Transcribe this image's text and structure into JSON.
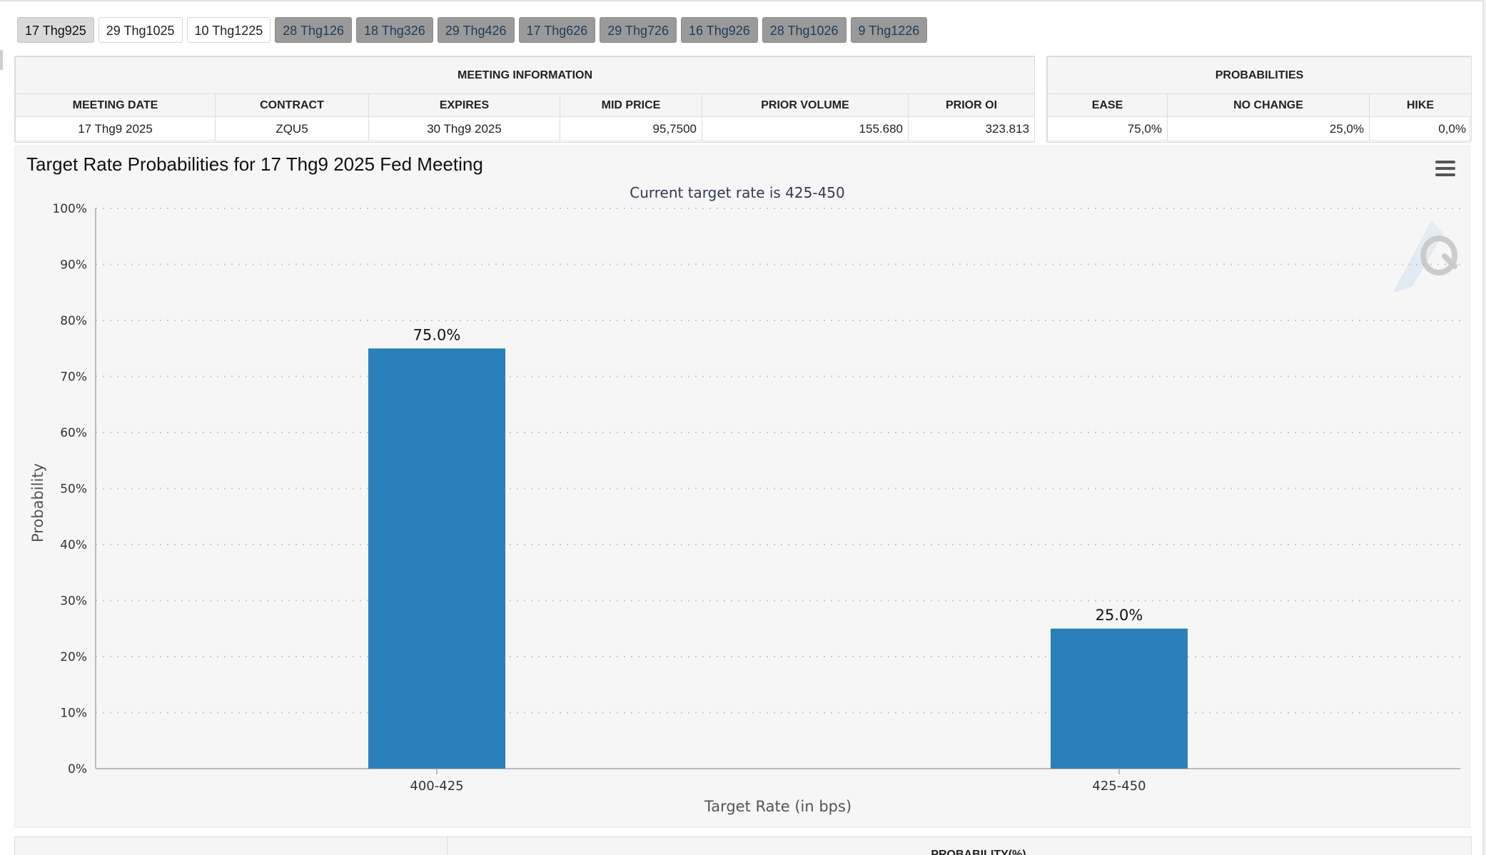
{
  "tabs": [
    {
      "label": "17 Thg925",
      "style": "active"
    },
    {
      "label": "29 Thg1025",
      "style": "light"
    },
    {
      "label": "10 Thg1225",
      "style": "light"
    },
    {
      "label": "28 Thg126",
      "style": "dark"
    },
    {
      "label": "18 Thg326",
      "style": "dark"
    },
    {
      "label": "29 Thg426",
      "style": "dark"
    },
    {
      "label": "17 Thg626",
      "style": "dark"
    },
    {
      "label": "29 Thg726",
      "style": "dark"
    },
    {
      "label": "16 Thg926",
      "style": "dark"
    },
    {
      "label": "28 Thg1026",
      "style": "dark"
    },
    {
      "label": "9 Thg1226",
      "style": "dark"
    }
  ],
  "meeting_info": {
    "heading": "MEETING INFORMATION",
    "columns": [
      "MEETING DATE",
      "CONTRACT",
      "EXPIRES",
      "MID PRICE",
      "PRIOR VOLUME",
      "PRIOR OI"
    ],
    "row": [
      "17 Thg9 2025",
      "ZQU5",
      "30 Thg9 2025",
      "95,7500",
      "155.680",
      "323.813"
    ]
  },
  "probabilities": {
    "heading": "PROBABILITIES",
    "columns": [
      "EASE",
      "NO CHANGE",
      "HIKE"
    ],
    "row": [
      "75,0%",
      "25,0%",
      "0,0%"
    ]
  },
  "chart": {
    "title": "Target Rate Probabilities for 17 Thg9 2025 Fed Meeting",
    "menu_icon": "hamburger-menu-icon",
    "watermark_icon": "quikstrike-q-logo"
  },
  "chart_data": {
    "type": "bar",
    "subtitle": "Current target rate is 425-450",
    "xlabel": "Target Rate (in bps)",
    "ylabel": "Probability",
    "categories": [
      "400-425",
      "425-450"
    ],
    "values": [
      75.0,
      25.0
    ],
    "data_labels": [
      "75.0%",
      "25.0%"
    ],
    "ylim": [
      0,
      100
    ],
    "yticks": [
      "0%",
      "10%",
      "20%",
      "30%",
      "40%",
      "50%",
      "60%",
      "70%",
      "80%",
      "90%",
      "100%"
    ],
    "grid": true,
    "bar_color": "#2b80bb"
  },
  "bottom_table": {
    "heading": "PROBABILITY(%)"
  }
}
